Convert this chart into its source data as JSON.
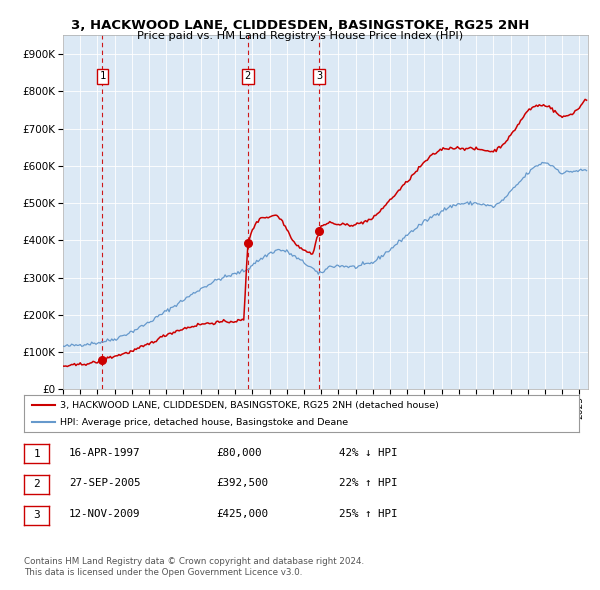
{
  "title": "3, HACKWOOD LANE, CLIDDESDEN, BASINGSTOKE, RG25 2NH",
  "subtitle": "Price paid vs. HM Land Registry's House Price Index (HPI)",
  "bg_color": "#dce9f5",
  "red_color": "#cc0000",
  "blue_color": "#6699cc",
  "sale_dates": [
    1997.29,
    2005.74,
    2009.87
  ],
  "sale_prices": [
    80000,
    392500,
    425000
  ],
  "sale_labels": [
    "1",
    "2",
    "3"
  ],
  "legend_red": "3, HACKWOOD LANE, CLIDDESDEN, BASINGSTOKE, RG25 2NH (detached house)",
  "legend_blue": "HPI: Average price, detached house, Basingstoke and Deane",
  "table_data": [
    [
      "1",
      "16-APR-1997",
      "£80,000",
      "42% ↓ HPI"
    ],
    [
      "2",
      "27-SEP-2005",
      "£392,500",
      "22% ↑ HPI"
    ],
    [
      "3",
      "12-NOV-2009",
      "£425,000",
      "25% ↑ HPI"
    ]
  ],
  "footnote1": "Contains HM Land Registry data © Crown copyright and database right 2024.",
  "footnote2": "This data is licensed under the Open Government Licence v3.0.",
  "ylim": [
    0,
    950000
  ],
  "yticks": [
    0,
    100000,
    200000,
    300000,
    400000,
    500000,
    600000,
    700000,
    800000,
    900000
  ],
  "xlim_start": 1995.0,
  "xlim_end": 2025.5
}
